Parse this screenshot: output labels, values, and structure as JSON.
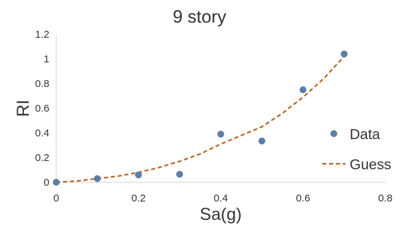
{
  "chart_data": {
    "type": "scatter",
    "title": "9 story",
    "xlabel": "Sa(g)",
    "ylabel": "RI",
    "xlim": [
      0,
      0.8
    ],
    "ylim": [
      0,
      1.2
    ],
    "x_ticks": [
      "0",
      "0.2",
      "0.4",
      "0.6",
      "0.8"
    ],
    "y_ticks": [
      "0",
      "0.2",
      "0.4",
      "0.6",
      "0.8",
      "1",
      "1.2"
    ],
    "grid": false,
    "legend_position": "right",
    "series": [
      {
        "name": "Data",
        "kind": "scatter",
        "color": "#5b7fa8",
        "x": [
          0,
          0.1,
          0.2,
          0.3,
          0.4,
          0.5,
          0.6,
          0.7
        ],
        "y": [
          0,
          0.03,
          0.06,
          0.065,
          0.39,
          0.335,
          0.75,
          1.04
        ]
      },
      {
        "name": "Guess",
        "kind": "line",
        "style": "dashed",
        "color": "#b8621b",
        "x": [
          0,
          0.05,
          0.1,
          0.15,
          0.2,
          0.25,
          0.3,
          0.35,
          0.4,
          0.45,
          0.5,
          0.55,
          0.6,
          0.65,
          0.7
        ],
        "y": [
          0,
          0.01,
          0.03,
          0.05,
          0.08,
          0.12,
          0.17,
          0.23,
          0.31,
          0.38,
          0.45,
          0.56,
          0.69,
          0.84,
          1.02
        ]
      }
    ]
  }
}
